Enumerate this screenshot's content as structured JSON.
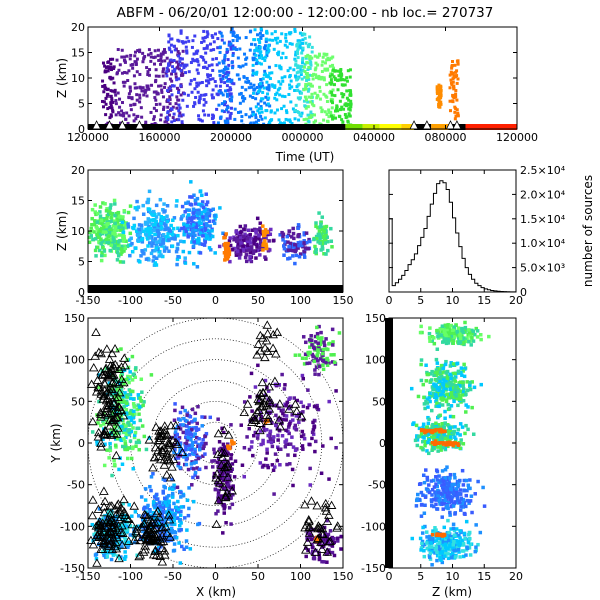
{
  "title": "ABFM - 06/20/01 12:00:00 - 12:00:00 - nb loc.= 270737",
  "chart_data": [
    {
      "id": "time-height",
      "type": "scatter",
      "xlabel": "Time (UT)",
      "ylabel": "Z (km)",
      "x_tick_labels": [
        "120000",
        "160000",
        "200000",
        "000000",
        "040000",
        "080000",
        "120000"
      ],
      "y_ticks": [
        0,
        5,
        10,
        15,
        20
      ],
      "ylim": [
        0,
        20
      ],
      "color_coding": "time",
      "clusters": [
        {
          "from": 0.03,
          "to": 0.06,
          "zmin": 1,
          "zmax": 14,
          "color": "#4b0082"
        },
        {
          "from": 0.06,
          "to": 0.22,
          "zmin": 0.5,
          "zmax": 16,
          "color": "#5a1a9a"
        },
        {
          "from": 0.18,
          "to": 0.34,
          "zmin": 1,
          "zmax": 20,
          "color": "#3d3df0"
        },
        {
          "from": 0.3,
          "to": 0.42,
          "zmin": 1,
          "zmax": 20,
          "color": "#0a7aff"
        },
        {
          "from": 0.38,
          "to": 0.5,
          "zmin": 1,
          "zmax": 20,
          "color": "#00c8ff"
        },
        {
          "from": 0.48,
          "to": 0.52,
          "zmin": 1,
          "zmax": 19,
          "color": "#33e0e0"
        },
        {
          "from": 0.5,
          "to": 0.57,
          "zmin": 1,
          "zmax": 15,
          "color": "#6cff6c"
        },
        {
          "from": 0.56,
          "to": 0.61,
          "zmin": 1,
          "zmax": 12,
          "color": "#30e030"
        },
        {
          "from": 0.81,
          "to": 0.82,
          "zmin": 4,
          "zmax": 9,
          "color": "#ff8c00"
        },
        {
          "from": 0.84,
          "to": 0.86,
          "zmin": 2,
          "zmax": 14,
          "color": "#ff7a00"
        }
      ]
    },
    {
      "id": "xz-projection",
      "type": "scatter",
      "xlabel": "",
      "ylabel": "Z (km)",
      "x_ticks": [
        -150,
        -100,
        -50,
        0,
        50,
        100,
        150
      ],
      "y_ticks": [
        0,
        5,
        10,
        15,
        20
      ],
      "xlim": [
        -150,
        150
      ],
      "ylim": [
        0,
        20
      ]
    },
    {
      "id": "altitude-histogram",
      "type": "line",
      "xlabel": "",
      "ylabel": "number of sources",
      "x_ticks": [
        0,
        5,
        10,
        15,
        20
      ],
      "y_tick_labels": [
        "0",
        "5.0×10³",
        "1.0×10⁴",
        "1.5×10⁴",
        "2.0×10⁴",
        "2.5×10⁴"
      ],
      "y_ticks": [
        0,
        5000,
        10000,
        15000,
        20000,
        25000
      ],
      "xlim": [
        0,
        20
      ],
      "ylim": [
        0,
        25000
      ],
      "bin_width": 0.5,
      "x": [
        0.0,
        0.5,
        1.0,
        1.5,
        2.0,
        2.5,
        3.0,
        3.5,
        4.0,
        4.5,
        5.0,
        5.5,
        6.0,
        6.5,
        7.0,
        7.5,
        8.0,
        8.5,
        9.0,
        9.5,
        10.0,
        10.5,
        11.0,
        11.5,
        12.0,
        12.5,
        13.0,
        13.5,
        14.0,
        14.5,
        15.0,
        15.5,
        16.0,
        16.5,
        17.0,
        17.5,
        18.0,
        18.5,
        19.0,
        19.5
      ],
      "values": [
        15000,
        1300,
        1900,
        2600,
        3400,
        4400,
        5600,
        6600,
        7800,
        9500,
        11200,
        13000,
        15500,
        18000,
        20200,
        22200,
        22800,
        22400,
        21000,
        18400,
        15200,
        12100,
        9300,
        6900,
        5000,
        3600,
        2600,
        1800,
        1300,
        900,
        650,
        450,
        320,
        220,
        150,
        100,
        70,
        50,
        30,
        20
      ]
    },
    {
      "id": "xy-plan",
      "type": "scatter",
      "xlabel": "X (km)",
      "ylabel": "Y (km)",
      "x_ticks": [
        -150,
        -100,
        -50,
        0,
        50,
        100,
        150
      ],
      "y_ticks": [
        -150,
        -100,
        -50,
        0,
        50,
        100,
        150
      ],
      "xlim": [
        -150,
        150
      ],
      "ylim": [
        -150,
        150
      ],
      "range_rings": true
    },
    {
      "id": "zy-projection",
      "type": "scatter",
      "xlabel": "Z (km)",
      "ylabel": "",
      "x_ticks": [
        0,
        5,
        10,
        15,
        20
      ],
      "y_ticks": [
        -150,
        -100,
        -50,
        0,
        50,
        100,
        150
      ],
      "xlim": [
        0,
        20
      ],
      "ylim": [
        -150,
        150
      ]
    }
  ]
}
